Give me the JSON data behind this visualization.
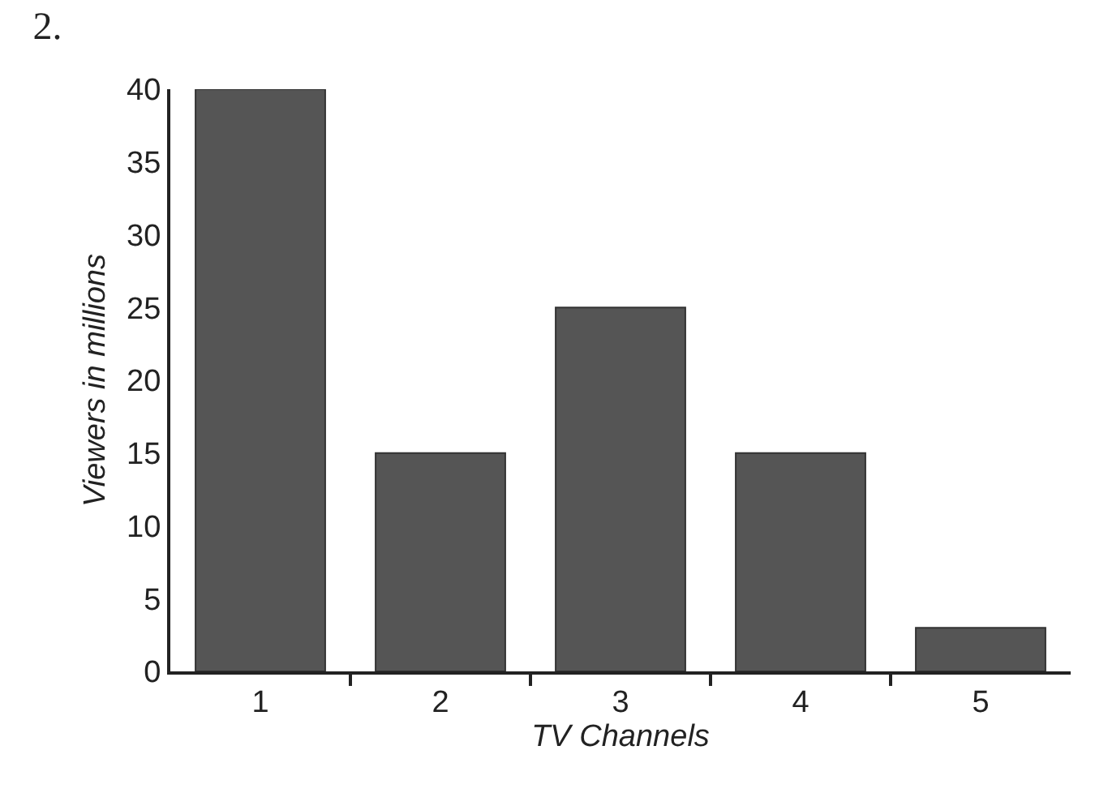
{
  "chart_data": {
    "type": "bar",
    "title": "2.",
    "xlabel": "TV Channels",
    "ylabel": "Viewers in millions",
    "categories": [
      "1",
      "2",
      "3",
      "4",
      "5"
    ],
    "values": [
      40,
      15,
      25,
      15,
      3
    ],
    "color": "#555555",
    "ylim": [
      0,
      40
    ],
    "yticks": [
      0,
      5,
      10,
      15,
      20,
      25,
      30,
      35,
      40
    ]
  }
}
